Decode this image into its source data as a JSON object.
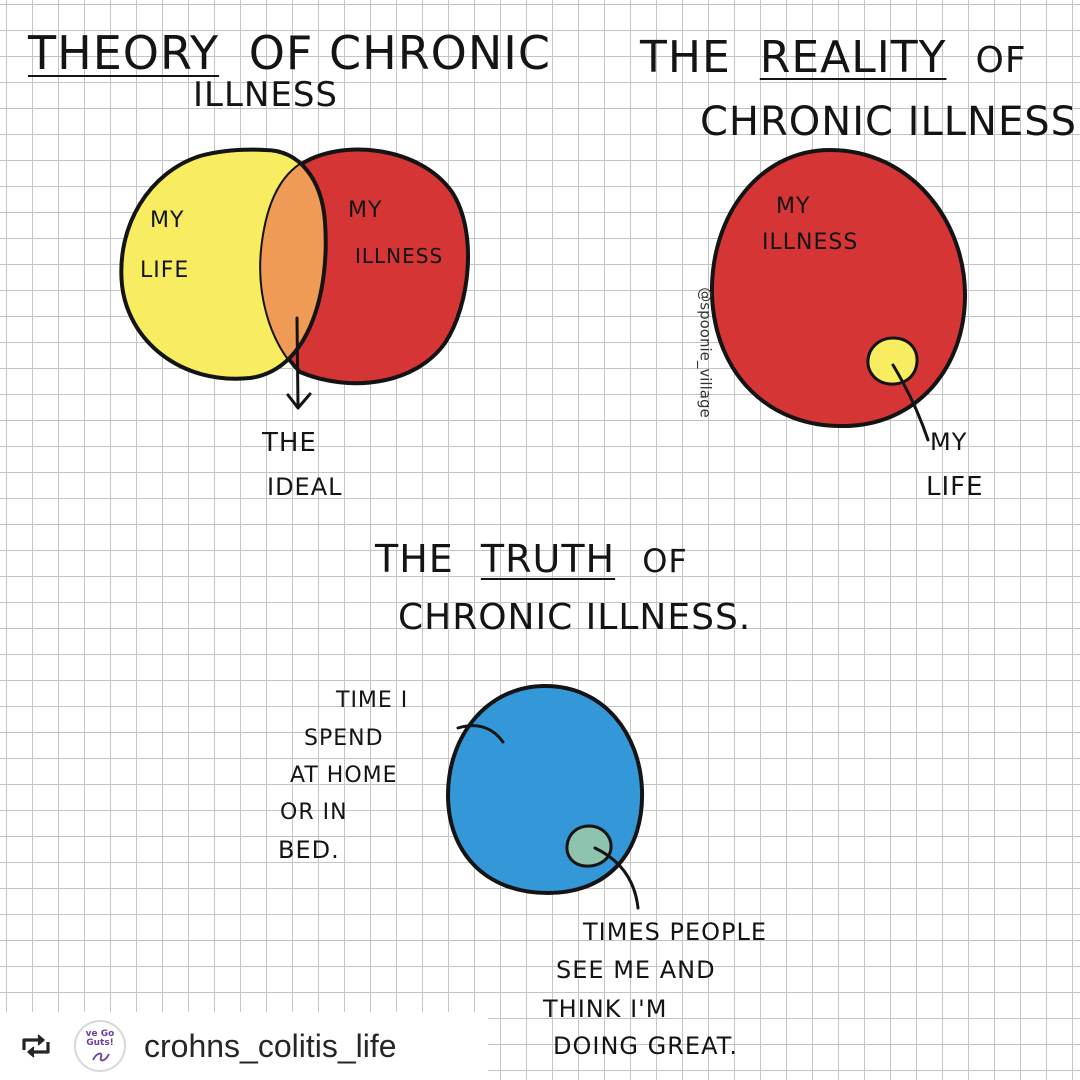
{
  "panels": {
    "theory": {
      "title_word": "THEORY",
      "title_rest": "OF  CHRONIC",
      "title_line2": "ILLNESS",
      "left_circle_label_1": "MY",
      "left_circle_label_2": "LIFE",
      "right_circle_label_1": "MY",
      "right_circle_label_2": "ILLNESS",
      "arrow_label_1": "THE",
      "arrow_label_2": "IDEAL"
    },
    "reality": {
      "title_pre": "THE",
      "title_word": "REALITY",
      "title_post": "OF",
      "title_line2": "CHRONIC  ILLNESS.",
      "big_circle_label_1": "MY",
      "big_circle_label_2": "ILLNESS",
      "small_circle_label_1": "MY",
      "small_circle_label_2": "LIFE",
      "watermark": "@spoonie_village"
    },
    "truth": {
      "title_pre": "THE",
      "title_word": "TRUTH",
      "title_post": "OF",
      "title_line2": "CHRONIC  ILLNESS.",
      "big_label_lines": [
        "TIME I",
        "SPEND",
        "AT HOME",
        "OR IN",
        "BED."
      ],
      "small_label_lines": [
        "TIMES PEOPLE",
        "SEE ME  AND",
        "THINK  I'M",
        "DOING  GREAT."
      ]
    }
  },
  "repost": {
    "icon": "repost-icon",
    "avatar_text": "ve Go Guts!",
    "username": "crohns_colitis_life"
  },
  "colors": {
    "yellow": "#f8ec60",
    "red": "#d63535",
    "orange_overlap": "#ef9a55",
    "blue": "#3497d7",
    "teal": "#8ec4ad",
    "outline": "#141414",
    "grid": "#c4c4c4"
  }
}
